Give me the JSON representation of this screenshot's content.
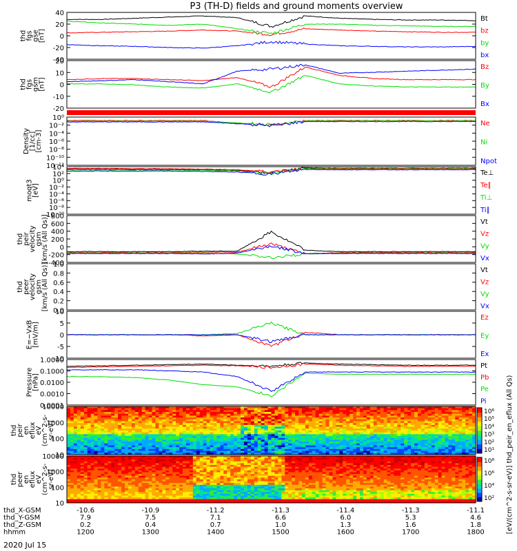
{
  "title": "P3 (TH-D) fields and ground moments overview",
  "colors": {
    "black": "#000000",
    "red": "#ff0000",
    "green": "#00dd00",
    "blue": "#0000ff"
  },
  "chart_data": [
    {
      "type": "line",
      "ylabel": [
        "thd",
        "fgs",
        "gse",
        "[nT]"
      ],
      "ylim": [
        -40,
        40
      ],
      "yticks": [
        "40",
        "20",
        "0",
        "-20",
        "-40"
      ],
      "series": [
        {
          "name": "Bt",
          "values": [
            28,
            28,
            30,
            32,
            34,
            31,
            16,
            34,
            30,
            28,
            27,
            27,
            26
          ]
        },
        {
          "name": "bz",
          "values": [
            5,
            6,
            7,
            8,
            10,
            8,
            2,
            12,
            10,
            8,
            7,
            6,
            6
          ]
        },
        {
          "name": "by",
          "values": [
            25,
            22,
            20,
            18,
            20,
            12,
            4,
            20,
            20,
            18,
            17,
            16,
            16
          ]
        },
        {
          "name": "bx",
          "values": [
            -15,
            -17,
            -18,
            -20,
            -21,
            -17,
            -10,
            -14,
            -17,
            -18,
            -19,
            -19,
            -18
          ]
        }
      ]
    },
    {
      "type": "line",
      "ylabel": [
        "thd",
        "fgs",
        "gsm",
        "[nT]"
      ],
      "ylim": [
        -25,
        20
      ],
      "yticks": [
        "20",
        "10",
        "0",
        "-10",
        "-20"
      ],
      "series": [
        {
          "name": "Bz",
          "values": [
            2,
            3,
            3,
            2,
            1,
            4,
            -5,
            14,
            6,
            3,
            2,
            2,
            2
          ]
        },
        {
          "name": "By",
          "values": [
            -2,
            -2,
            -3,
            -5,
            -6,
            -2,
            -10,
            6,
            -2,
            -4,
            -5,
            -5,
            -5
          ]
        },
        {
          "name": "Bx",
          "values": [
            0,
            1,
            2,
            0,
            -2,
            10,
            12,
            16,
            8,
            9,
            10,
            11,
            12
          ]
        }
      ]
    },
    {
      "type": "line",
      "ylabel": [
        "Density",
        "[1/cc]",
        "[cm-3]"
      ],
      "ylim": [
        -12,
        2
      ],
      "log": true,
      "yticks": [
        "10⁰",
        "10⁻²",
        "10⁻⁴",
        "10⁻⁶",
        "10⁻⁸",
        "10⁻¹⁰",
        "10⁻¹²"
      ],
      "series": [
        {
          "name": "Ne",
          "values": [
            1,
            1,
            1,
            1,
            1,
            0.2,
            -0.4,
            1,
            1,
            1,
            1,
            1,
            1
          ]
        },
        {
          "name": "Ni",
          "values": [
            0.8,
            0.8,
            0.8,
            0.8,
            0.8,
            0.3,
            -0.2,
            0.9,
            0.9,
            0.9,
            0.9,
            0.9,
            0.9
          ]
        },
        {
          "name": "Npot",
          "values": [
            0.6,
            0.6,
            0.6,
            0.6,
            0.6,
            0.1,
            -0.5,
            0.7,
            0.7,
            0.7,
            0.7,
            0.7,
            0.7
          ]
        }
      ]
    },
    {
      "type": "line",
      "ylabel": [
        "moqt3",
        "[eV]"
      ],
      "ylim": [
        -10,
        4
      ],
      "log": true,
      "yticks": [
        "10⁴",
        "10²",
        "10⁰",
        "10⁻²",
        "10⁻⁴",
        "10⁻⁶",
        "10⁻⁸",
        "10⁻¹⁰"
      ],
      "series": [
        {
          "name": "Te⊥",
          "values": [
            3.3,
            3.3,
            3.2,
            3.2,
            3.1,
            2.9,
            2.3,
            3.6,
            3.5,
            3.5,
            3.5,
            3.5,
            3.5
          ]
        },
        {
          "name": "Te∥",
          "values": [
            3.5,
            3.5,
            3.4,
            3.4,
            3.3,
            3.1,
            2.5,
            3.7,
            3.6,
            3.6,
            3.6,
            3.6,
            3.6
          ]
        },
        {
          "name": "Ti⊥",
          "values": [
            3,
            3,
            3,
            3,
            2.9,
            2.7,
            2,
            3.4,
            3.3,
            3.3,
            3.3,
            3.3,
            3.3
          ]
        },
        {
          "name": "Ti∥",
          "values": [
            2.7,
            2.7,
            2.7,
            2.7,
            2.6,
            2.4,
            1.8,
            3.2,
            3.1,
            3.1,
            3.1,
            3.1,
            3.1
          ]
        }
      ]
    },
    {
      "type": "line",
      "ylabel": [
        "thd",
        "peir",
        "velocity",
        "gsm",
        "[km/s (All Qs)]"
      ],
      "ylim": [
        -200,
        800
      ],
      "yticks": [
        "800",
        "600",
        "400",
        "200",
        "0",
        "-200",
        "-400"
      ],
      "series": [
        {
          "name": "Vt",
          "values": [
            30,
            30,
            30,
            30,
            40,
            40,
            450,
            60,
            30,
            30,
            30,
            30,
            30
          ]
        },
        {
          "name": "Vz",
          "values": [
            10,
            10,
            10,
            10,
            20,
            20,
            200,
            -20,
            10,
            10,
            10,
            10,
            10
          ]
        },
        {
          "name": "Vy",
          "values": [
            0,
            0,
            0,
            0,
            0,
            -20,
            -100,
            -20,
            0,
            0,
            0,
            0,
            0
          ]
        },
        {
          "name": "Vx",
          "values": [
            -10,
            -10,
            -10,
            -10,
            -20,
            0,
            150,
            -10,
            -10,
            -10,
            -10,
            -10,
            -10
          ]
        }
      ]
    },
    {
      "type": "line",
      "ylabel": [
        "thd",
        "peer",
        "velocity",
        "gsm",
        "[km/s (All Qs)]"
      ],
      "ylim": [
        0,
        1
      ],
      "yticks": [
        "1.0",
        "0.8",
        "0.6",
        "0.4",
        "0.2",
        "0.0"
      ],
      "series": [
        {
          "name": "Vt",
          "values": []
        },
        {
          "name": "Vz",
          "values": []
        },
        {
          "name": "Vy",
          "values": []
        },
        {
          "name": "Vx",
          "values": []
        }
      ]
    },
    {
      "type": "line",
      "ylabel": [
        "E=−VxB",
        "[mV/m]"
      ],
      "ylim": [
        -10,
        10
      ],
      "yticks": [
        "10",
        "5",
        "0",
        "-5",
        "-10"
      ],
      "series": [
        {
          "name": "Ez",
          "values": [
            0,
            0,
            0,
            0,
            -0.5,
            0,
            -5,
            1,
            0,
            0,
            0,
            0,
            0
          ]
        },
        {
          "name": "Ey",
          "values": [
            0,
            0,
            0,
            0,
            0,
            0.5,
            5,
            0,
            0,
            0,
            0,
            0,
            0
          ]
        },
        {
          "name": "Ex",
          "values": [
            0,
            0,
            0,
            0,
            0,
            0,
            -3,
            0,
            0,
            0,
            0,
            0,
            0
          ]
        }
      ]
    },
    {
      "type": "line",
      "ylabel": [
        "Pressure",
        "[nPa]"
      ],
      "ylim": [
        -4,
        0
      ],
      "log": true,
      "yticks": [
        "1.0000",
        "0.1000",
        "0.0100",
        "0.0010",
        "0.0001"
      ],
      "series": [
        {
          "name": "Pt",
          "values": [
            -0.6,
            -0.55,
            -0.5,
            -0.45,
            -0.4,
            -0.5,
            -0.6,
            -0.3,
            -0.4,
            -0.45,
            -0.5,
            -0.5,
            -0.5
          ]
        },
        {
          "name": "Pb",
          "values": [
            -0.7,
            -0.65,
            -0.6,
            -0.55,
            -0.5,
            -0.55,
            -0.7,
            -0.4,
            -0.5,
            -0.55,
            -0.6,
            -0.6,
            -0.6
          ]
        },
        {
          "name": "Pe",
          "values": [
            -1.5,
            -1.5,
            -1.6,
            -1.8,
            -2.2,
            -2.4,
            -3.2,
            -1.2,
            -1.3,
            -1.3,
            -1.3,
            -1.3,
            -1.3
          ]
        },
        {
          "name": "Pi",
          "values": [
            -0.9,
            -0.9,
            -0.9,
            -1.0,
            -1.1,
            -1.5,
            -2.8,
            -1.1,
            -1.1,
            -1.1,
            -1.1,
            -1.1,
            -1.1
          ]
        }
      ]
    },
    {
      "type": "heatmap",
      "ylabel": [
        "thd",
        "peir",
        "en",
        "eflux",
        "eV",
        "(cm^2-s-",
        "sr-eV)"
      ],
      "yticks": [
        "10000",
        "1000",
        "100",
        "10"
      ]
    },
    {
      "type": "heatmap",
      "ylabel": [
        "thd",
        "peer",
        "en",
        "eflux",
        "eV",
        "(cm^2-s-",
        "sr-eV)"
      ],
      "yticks": [
        "10000",
        "1000",
        "100",
        "10"
      ]
    }
  ],
  "colorbar": {
    "ticks1": [
      "10⁶",
      "10⁵",
      "10⁴",
      "10³",
      "10²",
      "10¹"
    ],
    "ticks2": [
      "10⁸",
      "10⁶",
      "10⁴",
      "10²"
    ],
    "label": "[eV/(cm^2-s-sr-eV)] thd_peir_en_eflux (All Qs)"
  },
  "xaxis": {
    "rows": [
      {
        "label": "thd_X-GSM",
        "values": [
          "-10.6",
          "-10.9",
          "-11.2",
          "-11.3",
          "-11.4",
          "-11.3",
          "-11.1"
        ]
      },
      {
        "label": "thd_Y-GSM",
        "values": [
          "7.9",
          "7.5",
          "7.1",
          "6.6",
          "6.0",
          "5.3",
          "4.6"
        ]
      },
      {
        "label": "thd_Z-GSM",
        "values": [
          "0.2",
          "0.4",
          "0.7",
          "1.0",
          "1.3",
          "1.6",
          "1.8"
        ]
      },
      {
        "label": "hhmm",
        "values": [
          "1200",
          "1300",
          "1400",
          "1500",
          "1600",
          "1700",
          "1800"
        ]
      }
    ],
    "date": "2020 Jul 15"
  }
}
